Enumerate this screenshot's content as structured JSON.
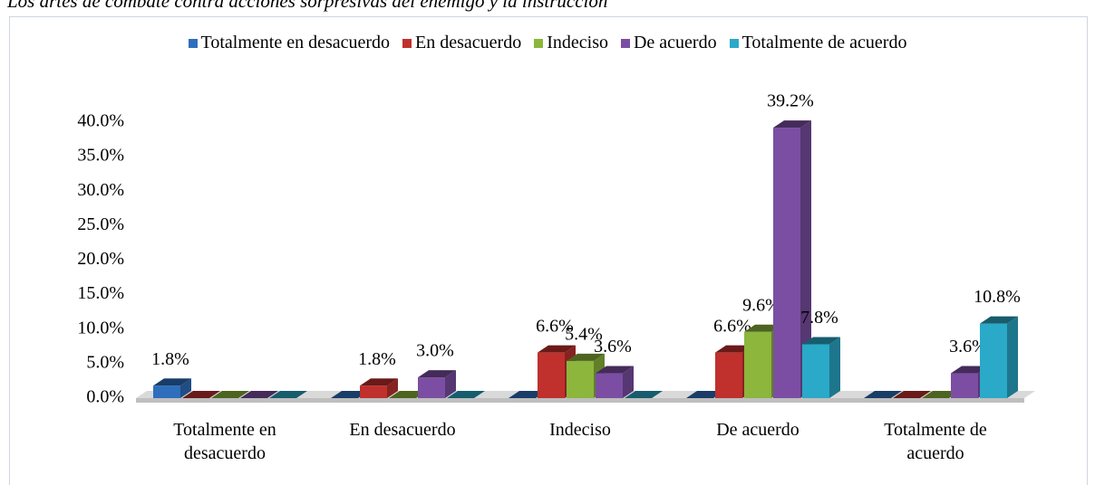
{
  "chart_data": {
    "type": "bar3d",
    "title": "Los artes de combate contra acciones sorpresivas del enemigo y la instrucción",
    "categories": [
      "Totalmente en desacuerdo",
      "En desacuerdo",
      "Indeciso",
      "De acuerdo",
      "Totalmente de acuerdo"
    ],
    "series": [
      {
        "name": "Totalmente en desacuerdo",
        "color": "#2e6ebd",
        "values": [
          1.8,
          0,
          0,
          0,
          0
        ],
        "value_labels": [
          "1.8%",
          null,
          null,
          null,
          null
        ]
      },
      {
        "name": "En desacuerdo",
        "color": "#c0302d",
        "values": [
          0,
          1.8,
          6.6,
          6.6,
          0
        ],
        "value_labels": [
          null,
          "1.8%",
          "6.6%",
          "6.6%",
          null
        ]
      },
      {
        "name": "Indeciso",
        "color": "#8cb63c",
        "values": [
          0,
          0,
          5.4,
          9.6,
          0
        ],
        "value_labels": [
          null,
          null,
          "5.4%",
          "9.6%",
          null
        ]
      },
      {
        "name": "De acuerdo",
        "color": "#7b4ea3",
        "values": [
          0,
          3.0,
          3.6,
          39.2,
          3.6
        ],
        "value_labels": [
          null,
          "3.0%",
          "3.6%",
          "39.2%",
          "3.6%"
        ]
      },
      {
        "name": "Totalmente de acuerdo",
        "color": "#2aa9c8",
        "values": [
          0,
          0,
          0,
          7.8,
          10.8
        ],
        "value_labels": [
          null,
          null,
          null,
          "7.8%",
          "10.8%"
        ]
      }
    ],
    "ylim": [
      0,
      40
    ],
    "yticks": [
      {
        "value": 0,
        "label": "0.0%"
      },
      {
        "value": 5,
        "label": "5.0%"
      },
      {
        "value": 10,
        "label": "10.0%"
      },
      {
        "value": 15,
        "label": "15.0%"
      },
      {
        "value": 20,
        "label": "20.0%"
      },
      {
        "value": 25,
        "label": "25.0%"
      },
      {
        "value": 30,
        "label": "30.0%"
      },
      {
        "value": 35,
        "label": "35.0%"
      },
      {
        "value": 40,
        "label": "40.0%"
      }
    ],
    "legend": "top"
  }
}
